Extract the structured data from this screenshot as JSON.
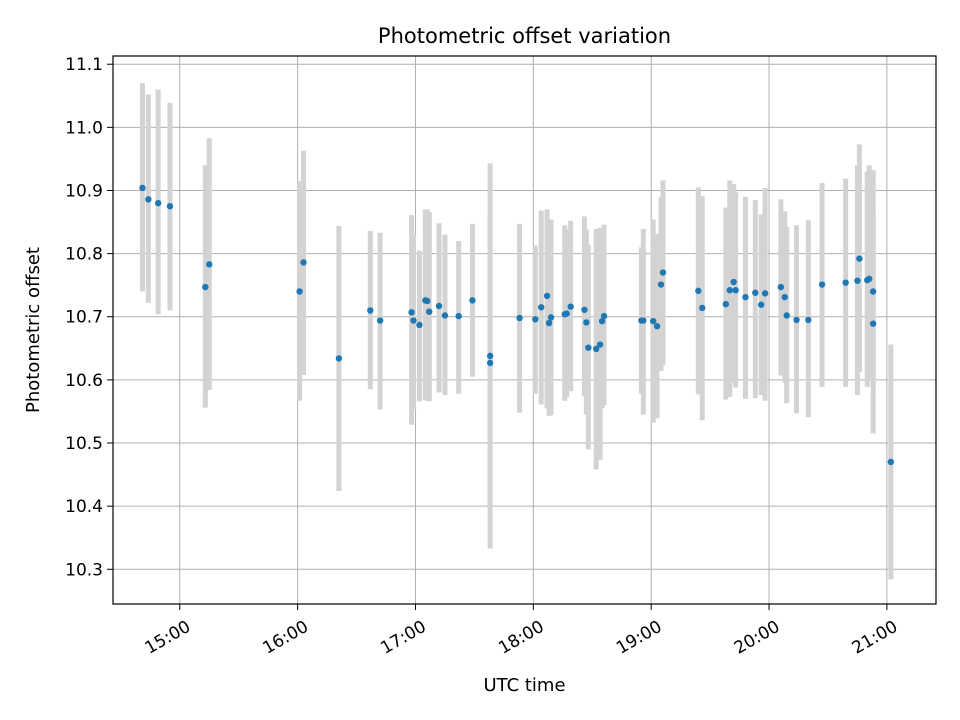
{
  "chart_data": {
    "type": "scatter",
    "title": "Photometric offset variation",
    "xlabel": "UTC time",
    "ylabel": "Photometric offset",
    "x_tick_labels": [
      "15:00",
      "16:00",
      "17:00",
      "18:00",
      "19:00",
      "20:00",
      "21:00"
    ],
    "y_tick_labels": [
      "10.3",
      "10.4",
      "10.5",
      "10.6",
      "10.7",
      "10.8",
      "10.9",
      "11.0",
      "11.1"
    ],
    "xlim": [
      "14:26",
      "21:25"
    ],
    "ylim": [
      10.245,
      11.113
    ],
    "grid": true,
    "marker_color": "#1f77b4",
    "errorbar_color": "#d3d3d3",
    "series": [
      {
        "x": [
          "14:41",
          "14:44",
          "14:49",
          "14:55",
          "15:13",
          "15:15",
          "16:01",
          "16:03",
          "16:21",
          "16:37",
          "16:42",
          "16:58",
          "16:59",
          "17:02",
          "17:05",
          "17:06",
          "17:07",
          "17:12",
          "17:15",
          "17:22",
          "17:29",
          "17:38",
          "17:38",
          "17:53",
          "18:01",
          "18:04",
          "18:07",
          "18:08",
          "18:09",
          "18:16",
          "18:17",
          "18:19",
          "18:26",
          "18:27",
          "18:28",
          "18:32",
          "18:34",
          "18:35",
          "18:36",
          "18:55",
          "18:56",
          "19:01",
          "19:03",
          "19:05",
          "19:06",
          "19:24",
          "19:26",
          "19:38",
          "19:40",
          "19:42",
          "19:43",
          "19:48",
          "19:53",
          "19:56",
          "19:58",
          "20:06",
          "20:08",
          "20:09",
          "20:14",
          "20:20",
          "20:27",
          "20:39",
          "20:45",
          "20:46",
          "20:50",
          "20:51",
          "20:53",
          "20:53",
          "21:02"
        ],
        "y": [
          10.904,
          10.886,
          10.88,
          10.875,
          10.747,
          10.783,
          10.74,
          10.786,
          10.634,
          10.71,
          10.694,
          10.707,
          10.694,
          10.687,
          10.726,
          10.725,
          10.708,
          10.717,
          10.702,
          10.701,
          10.726,
          10.638,
          10.627,
          10.698,
          10.696,
          10.715,
          10.733,
          10.69,
          10.699,
          10.704,
          10.705,
          10.716,
          10.711,
          10.691,
          10.651,
          10.649,
          10.656,
          10.693,
          10.701,
          10.694,
          10.694,
          10.693,
          10.685,
          10.751,
          10.77,
          10.741,
          10.714,
          10.72,
          10.742,
          10.755,
          10.742,
          10.731,
          10.738,
          10.719,
          10.737,
          10.747,
          10.731,
          10.702,
          10.695,
          10.695,
          10.751,
          10.754,
          10.757,
          10.792,
          10.758,
          10.76,
          10.74,
          10.689,
          10.47
        ],
        "yerr_low": [
          10.74,
          10.722,
          10.704,
          10.71,
          10.556,
          10.584,
          10.567,
          10.608,
          10.424,
          10.585,
          10.553,
          10.529,
          10.553,
          10.566,
          10.568,
          10.567,
          10.566,
          10.58,
          10.576,
          10.578,
          10.605,
          10.398,
          10.333,
          10.548,
          10.578,
          10.561,
          10.555,
          10.543,
          10.544,
          10.567,
          10.573,
          10.582,
          10.574,
          10.545,
          10.49,
          10.458,
          10.473,
          10.555,
          10.56,
          10.578,
          10.545,
          10.532,
          10.539,
          10.614,
          10.624,
          10.577,
          10.536,
          10.569,
          10.573,
          10.596,
          10.588,
          10.57,
          10.571,
          10.576,
          10.567,
          10.607,
          10.596,
          10.563,
          10.547,
          10.541,
          10.589,
          10.589,
          10.576,
          10.612,
          10.589,
          10.599,
          10.585,
          10.515,
          10.284
        ],
        "yerr_high": [
          11.07,
          11.052,
          11.06,
          11.039,
          10.94,
          10.983,
          10.915,
          10.963,
          10.844,
          10.836,
          10.833,
          10.861,
          10.83,
          10.805,
          10.87,
          10.87,
          10.866,
          10.848,
          10.83,
          10.82,
          10.847,
          10.862,
          10.943,
          10.847,
          10.813,
          10.868,
          10.87,
          10.845,
          10.854,
          10.845,
          10.838,
          10.852,
          10.859,
          10.838,
          10.814,
          10.839,
          10.841,
          10.832,
          10.846,
          10.81,
          10.839,
          10.854,
          10.831,
          10.889,
          10.916,
          10.905,
          10.891,
          10.873,
          10.916,
          10.91,
          10.898,
          10.89,
          10.885,
          10.862,
          10.904,
          10.886,
          10.867,
          10.842,
          10.845,
          10.853,
          10.912,
          10.919,
          10.94,
          10.973,
          10.93,
          10.94,
          10.932,
          10.864,
          10.656
        ]
      }
    ]
  }
}
